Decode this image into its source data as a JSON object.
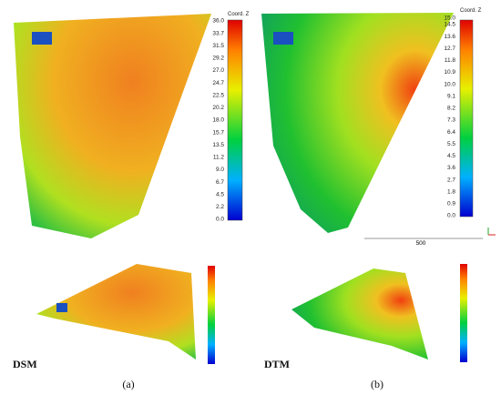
{
  "left_colorbar": {
    "title": "Coord. Z",
    "ticks": [
      "0.0",
      "2.2",
      "4.5",
      "6.7",
      "9.0",
      "11.2",
      "13.5",
      "15.7",
      "18.0",
      "20.2",
      "22.5",
      "24.7",
      "27.0",
      "29.2",
      "31.5",
      "33.7",
      "36.0"
    ]
  },
  "right_colorbar": {
    "title": "Coord. Z",
    "ticks": [
      "0.0",
      "0.9",
      "1.8",
      "2.7",
      "3.6",
      "4.5",
      "5.5",
      "6.4",
      "7.3",
      "8.2",
      "9.1",
      "10.0",
      "10.9",
      "11.8",
      "12.7",
      "13.6",
      "14.5"
    ],
    "max": "15.0"
  },
  "scale_bar": "500",
  "labels": {
    "dsm": "DSM",
    "dtm": "DTM",
    "a": "(a)",
    "b": "(b)"
  }
}
